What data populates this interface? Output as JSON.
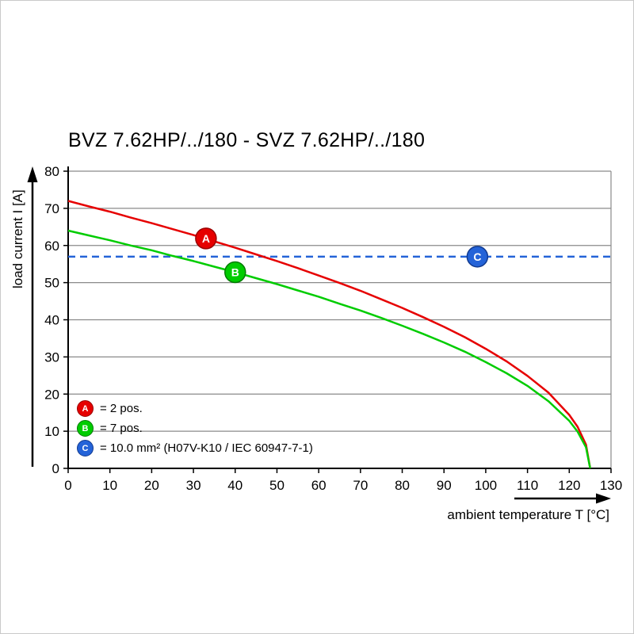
{
  "chart_data": {
    "type": "line",
    "title": "BVZ 7.62HP/../180 - SVZ 7.62HP/../180",
    "xlabel": "ambient temperature T [°C]",
    "ylabel": "load current I [A]",
    "xlim": [
      0,
      130
    ],
    "ylim": [
      0,
      80
    ],
    "xticks": [
      0,
      10,
      20,
      30,
      40,
      50,
      60,
      70,
      80,
      90,
      100,
      110,
      120,
      130
    ],
    "yticks": [
      0,
      10,
      20,
      30,
      40,
      50,
      60,
      70,
      80
    ],
    "grid": "horizontal-only",
    "axis_color": "#000000",
    "grid_color": "#8a8a8a",
    "legend_position": "bottom-left-inside",
    "series": [
      {
        "name": "A",
        "legend_label": "= 2 pos.",
        "type": "curve",
        "color": "#e60000",
        "marker_stroke": "#990000",
        "marker_at": {
          "x": 33,
          "y": 61.9
        },
        "points": [
          [
            0,
            72
          ],
          [
            5,
            70.5
          ],
          [
            10,
            69.1
          ],
          [
            15,
            67.5
          ],
          [
            20,
            66.0
          ],
          [
            25,
            64.4
          ],
          [
            30,
            62.8
          ],
          [
            35,
            61.1
          ],
          [
            40,
            59.4
          ],
          [
            45,
            57.6
          ],
          [
            50,
            55.8
          ],
          [
            55,
            53.9
          ],
          [
            60,
            51.9
          ],
          [
            65,
            49.9
          ],
          [
            70,
            47.8
          ],
          [
            75,
            45.5
          ],
          [
            80,
            43.2
          ],
          [
            85,
            40.7
          ],
          [
            90,
            38.1
          ],
          [
            95,
            35.3
          ],
          [
            100,
            32.2
          ],
          [
            105,
            28.8
          ],
          [
            110,
            24.9
          ],
          [
            115,
            20.4
          ],
          [
            120,
            14.4
          ],
          [
            122,
            11.2
          ],
          [
            124,
            6.4
          ],
          [
            125,
            0
          ]
        ]
      },
      {
        "name": "B",
        "legend_label": "= 7 pos.",
        "type": "curve",
        "color": "#00cc00",
        "marker_stroke": "#007a00",
        "marker_at": {
          "x": 40,
          "y": 52.8
        },
        "points": [
          [
            0,
            64
          ],
          [
            5,
            62.7
          ],
          [
            10,
            61.4
          ],
          [
            15,
            60.0
          ],
          [
            20,
            58.7
          ],
          [
            25,
            57.2
          ],
          [
            30,
            55.8
          ],
          [
            35,
            54.3
          ],
          [
            40,
            52.8
          ],
          [
            45,
            51.2
          ],
          [
            50,
            49.6
          ],
          [
            55,
            47.9
          ],
          [
            60,
            46.2
          ],
          [
            65,
            44.3
          ],
          [
            70,
            42.5
          ],
          [
            75,
            40.5
          ],
          [
            80,
            38.4
          ],
          [
            85,
            36.2
          ],
          [
            90,
            33.9
          ],
          [
            95,
            31.4
          ],
          [
            100,
            28.6
          ],
          [
            105,
            25.6
          ],
          [
            110,
            22.2
          ],
          [
            115,
            18.1
          ],
          [
            120,
            12.8
          ],
          [
            122,
            9.9
          ],
          [
            124,
            5.7
          ],
          [
            125,
            0
          ]
        ]
      },
      {
        "name": "C",
        "legend_label": "= 10.0 mm² (H07V-K10 / IEC 60947-7-1)",
        "type": "hline-dashed",
        "color": "#2463d8",
        "marker_stroke": "#113a8f",
        "value": 57,
        "marker_at": {
          "x": 98,
          "y": 57
        }
      }
    ]
  }
}
